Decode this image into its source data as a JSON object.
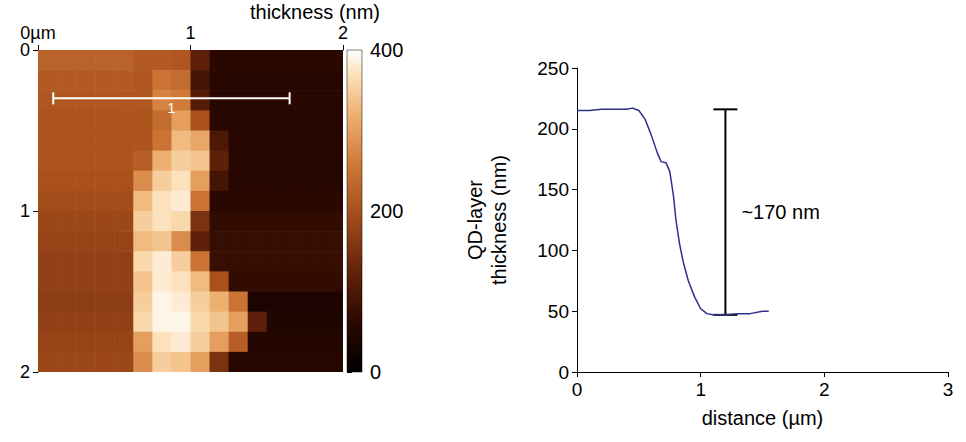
{
  "chart_data": [
    {
      "type": "heatmap",
      "xlim": [
        0,
        2
      ],
      "xticks": [
        {
          "value": 0,
          "label": "0µm"
        },
        1,
        2
      ],
      "ylim": [
        0,
        2
      ],
      "yticks": [
        0,
        1,
        2
      ],
      "x": [
        0.0625,
        0.1875,
        0.3125,
        0.4375,
        0.5625,
        0.6875,
        0.8125,
        0.9375,
        1.0625,
        1.1875,
        1.3125,
        1.4375,
        1.5625,
        1.6875,
        1.8125,
        1.9375
      ],
      "y": [
        0.0625,
        0.1875,
        0.3125,
        0.4375,
        0.5625,
        0.6875,
        0.8125,
        0.9375,
        1.0625,
        1.1875,
        1.3125,
        1.4375,
        1.5625,
        1.6875,
        1.8125,
        1.9375
      ],
      "values": [
        [
          225,
          225,
          225,
          225,
          225,
          215,
          215,
          210,
          120,
          60,
          60,
          60,
          60,
          60,
          60,
          60
        ],
        [
          215,
          215,
          215,
          215,
          215,
          210,
          250,
          240,
          90,
          55,
          55,
          55,
          55,
          55,
          55,
          55
        ],
        [
          210,
          210,
          210,
          210,
          210,
          210,
          270,
          260,
          110,
          55,
          55,
          55,
          55,
          55,
          55,
          55
        ],
        [
          205,
          205,
          205,
          205,
          205,
          205,
          240,
          300,
          200,
          55,
          55,
          55,
          55,
          55,
          55,
          55
        ],
        [
          205,
          205,
          205,
          205,
          205,
          205,
          250,
          330,
          310,
          100,
          55,
          55,
          55,
          55,
          55,
          55
        ],
        [
          205,
          205,
          205,
          205,
          205,
          220,
          320,
          350,
          340,
          120,
          55,
          55,
          55,
          55,
          55,
          55
        ],
        [
          200,
          200,
          200,
          200,
          200,
          280,
          350,
          370,
          300,
          90,
          55,
          55,
          55,
          55,
          55,
          55
        ],
        [
          195,
          195,
          195,
          195,
          195,
          330,
          370,
          380,
          250,
          60,
          60,
          60,
          60,
          60,
          60,
          60
        ],
        [
          185,
          185,
          185,
          185,
          185,
          350,
          370,
          360,
          150,
          70,
          70,
          70,
          70,
          70,
          70,
          70
        ],
        [
          180,
          180,
          180,
          180,
          180,
          330,
          340,
          280,
          120,
          75,
          75,
          75,
          75,
          75,
          75,
          75
        ],
        [
          175,
          175,
          175,
          175,
          175,
          360,
          380,
          350,
          250,
          75,
          75,
          75,
          75,
          75,
          75,
          75
        ],
        [
          175,
          175,
          175,
          175,
          175,
          340,
          380,
          370,
          330,
          200,
          70,
          70,
          70,
          70,
          70,
          70
        ],
        [
          170,
          170,
          170,
          170,
          170,
          350,
          390,
          380,
          350,
          320,
          250,
          40,
          40,
          40,
          40,
          40
        ],
        [
          175,
          175,
          175,
          175,
          175,
          360,
          390,
          390,
          360,
          340,
          300,
          120,
          45,
          45,
          45,
          45
        ],
        [
          180,
          180,
          180,
          180,
          180,
          300,
          370,
          380,
          350,
          300,
          220,
          50,
          50,
          50,
          50,
          50
        ],
        [
          185,
          185,
          185,
          185,
          185,
          280,
          350,
          340,
          300,
          150,
          55,
          55,
          55,
          55,
          55,
          55
        ]
      ],
      "colorbar": {
        "title": "thickness (nm)",
        "range": [
          0,
          400
        ],
        "ticks": [
          0,
          200,
          400
        ]
      },
      "annotations": [
        {
          "text": "1",
          "x": [
            0.1,
            1.65
          ],
          "y": 0.3
        }
      ]
    },
    {
      "type": "line",
      "xlabel": "distance (µm)",
      "ylabel": "QD-layer thickness (nm)",
      "xlim": [
        0,
        3
      ],
      "xticks": [
        0,
        1,
        2,
        3
      ],
      "ylim": [
        0,
        250
      ],
      "yticks": [
        0,
        50,
        100,
        150,
        200,
        250
      ],
      "color": "#2e2e8c",
      "x": [
        0,
        0.1,
        0.2,
        0.3,
        0.4,
        0.45,
        0.5,
        0.55,
        0.6,
        0.65,
        0.68,
        0.72,
        0.75,
        0.78,
        0.8,
        0.83,
        0.86,
        0.9,
        0.95,
        1.0,
        1.05,
        1.1,
        1.2,
        1.3,
        1.4,
        1.5,
        1.55
      ],
      "values": [
        215,
        215,
        216,
        216,
        216,
        217,
        215,
        208,
        195,
        180,
        173,
        172,
        165,
        145,
        125,
        105,
        90,
        75,
        62,
        52,
        48,
        47,
        47,
        48,
        48,
        50,
        50
      ],
      "annotations": [
        {
          "text": "~170 nm",
          "x": 1.2,
          "y": [
            47,
            216
          ]
        }
      ]
    }
  ]
}
